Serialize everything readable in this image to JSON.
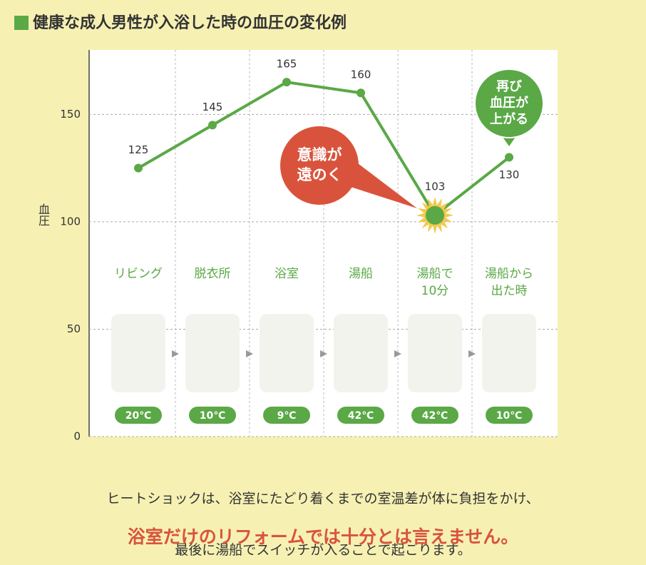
{
  "chart_data": {
    "type": "line",
    "title": "健康な成人男性が入浴した時の血圧の変化例",
    "y_label": "血圧",
    "categories": [
      "リビング",
      "脱衣所",
      "浴室",
      "湯船",
      "湯船で\n10分",
      "湯船から\n出た時"
    ],
    "temperatures": [
      "20℃",
      "10℃",
      "9℃",
      "42℃",
      "42℃",
      "10℃"
    ],
    "values": [
      125,
      145,
      165,
      160,
      103,
      130
    ],
    "color": "#5aa846",
    "ylim": [
      0,
      180
    ],
    "yticks": [
      0,
      50,
      100,
      150
    ],
    "grid": true,
    "annotations": [
      {
        "text": "意識が\n遠のく",
        "color": "#d9533c"
      },
      {
        "text": "再び\n血圧が\n上がる",
        "color": "#5aa846"
      }
    ],
    "footer": [
      "ヒートショックは、浴室にたどり着くまでの室温差が体に負担をかけ、",
      "最後に湯船でスイッチが入ることで起こります。"
    ],
    "conclusion": "浴室だけのリフォームでは十分とは言えません。"
  }
}
